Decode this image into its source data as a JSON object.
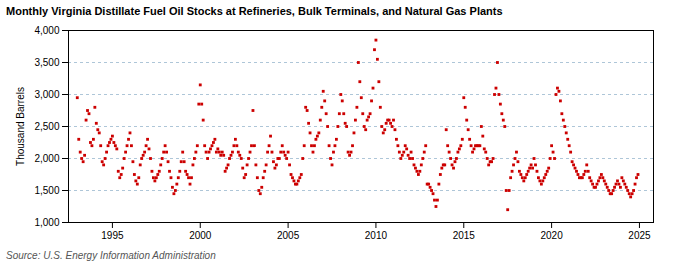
{
  "chart_data": {
    "type": "scatter",
    "title": "Monthly Virginia Distillate Fuel Oil Stocks at Refineries, Bulk Terminals, and Natural Gas Plants",
    "ylabel": "Thousand Barrels",
    "source": "Source: U.S. Energy Information Administration",
    "color": "#cc0000",
    "marker": "square",
    "grid": "y",
    "xlim": [
      1992.5,
      2025.8
    ],
    "xticks": [
      1995,
      2000,
      2005,
      2010,
      2015,
      2020,
      2025
    ],
    "ylim": [
      1000,
      4000
    ],
    "yticks": [
      {
        "value": 1000,
        "label": "1,000"
      },
      {
        "value": 1500,
        "label": "1,500"
      },
      {
        "value": 2000,
        "label": "2,000"
      },
      {
        "value": 2500,
        "label": "2,500"
      },
      {
        "value": 3000,
        "label": "3,000"
      },
      {
        "value": 3500,
        "label": "3,500"
      },
      {
        "value": 4000,
        "label": "4,000"
      }
    ],
    "x": [
      1993.0,
      1993.083,
      1993.167,
      1993.25,
      1993.333,
      1993.417,
      1993.5,
      1993.583,
      1993.667,
      1993.75,
      1993.833,
      1993.917,
      1994.0,
      1994.083,
      1994.167,
      1994.25,
      1994.333,
      1994.417,
      1994.5,
      1994.583,
      1994.667,
      1994.75,
      1994.833,
      1994.917,
      1995.0,
      1995.083,
      1995.167,
      1995.25,
      1995.333,
      1995.417,
      1995.5,
      1995.583,
      1995.667,
      1995.75,
      1995.833,
      1995.917,
      1996.0,
      1996.083,
      1996.167,
      1996.25,
      1996.333,
      1996.417,
      1996.5,
      1996.583,
      1996.667,
      1996.75,
      1996.833,
      1996.917,
      1997.0,
      1997.083,
      1997.167,
      1997.25,
      1997.333,
      1997.417,
      1997.5,
      1997.583,
      1997.667,
      1997.75,
      1997.833,
      1997.917,
      1998.0,
      1998.083,
      1998.167,
      1998.25,
      1998.333,
      1998.417,
      1998.5,
      1998.583,
      1998.667,
      1998.75,
      1998.833,
      1998.917,
      1999.0,
      1999.083,
      1999.167,
      1999.25,
      1999.333,
      1999.417,
      1999.5,
      1999.583,
      1999.667,
      1999.75,
      1999.833,
      1999.917,
      2000.0,
      2000.083,
      2000.167,
      2000.25,
      2000.333,
      2000.417,
      2000.5,
      2000.583,
      2000.667,
      2000.75,
      2000.833,
      2000.917,
      2001.0,
      2001.083,
      2001.167,
      2001.25,
      2001.333,
      2001.417,
      2001.5,
      2001.583,
      2001.667,
      2001.75,
      2001.833,
      2001.917,
      2002.0,
      2002.083,
      2002.167,
      2002.25,
      2002.333,
      2002.417,
      2002.5,
      2002.583,
      2002.667,
      2002.75,
      2002.833,
      2002.917,
      2003.0,
      2003.083,
      2003.167,
      2003.25,
      2003.333,
      2003.417,
      2003.5,
      2003.583,
      2003.667,
      2003.75,
      2003.833,
      2003.917,
      2004.0,
      2004.083,
      2004.167,
      2004.25,
      2004.333,
      2004.417,
      2004.5,
      2004.583,
      2004.667,
      2004.75,
      2004.833,
      2004.917,
      2005.0,
      2005.083,
      2005.167,
      2005.25,
      2005.333,
      2005.417,
      2005.5,
      2005.583,
      2005.667,
      2005.75,
      2005.833,
      2005.917,
      2006.0,
      2006.083,
      2006.167,
      2006.25,
      2006.333,
      2006.417,
      2006.5,
      2006.583,
      2006.667,
      2006.75,
      2006.833,
      2006.917,
      2007.0,
      2007.083,
      2007.167,
      2007.25,
      2007.333,
      2007.417,
      2007.5,
      2007.583,
      2007.667,
      2007.75,
      2007.833,
      2007.917,
      2008.0,
      2008.083,
      2008.167,
      2008.25,
      2008.333,
      2008.417,
      2008.5,
      2008.583,
      2008.667,
      2008.75,
      2008.833,
      2008.917,
      2009.0,
      2009.083,
      2009.167,
      2009.25,
      2009.333,
      2009.417,
      2009.5,
      2009.583,
      2009.667,
      2009.75,
      2009.833,
      2009.917,
      2010.0,
      2010.083,
      2010.167,
      2010.25,
      2010.333,
      2010.417,
      2010.5,
      2010.583,
      2010.667,
      2010.75,
      2010.833,
      2010.917,
      2011.0,
      2011.083,
      2011.167,
      2011.25,
      2011.333,
      2011.417,
      2011.5,
      2011.583,
      2011.667,
      2011.75,
      2011.833,
      2011.917,
      2012.0,
      2012.083,
      2012.167,
      2012.25,
      2012.333,
      2012.417,
      2012.5,
      2012.583,
      2012.667,
      2012.75,
      2012.833,
      2012.917,
      2013.0,
      2013.083,
      2013.167,
      2013.25,
      2013.333,
      2013.417,
      2013.5,
      2013.583,
      2013.667,
      2013.75,
      2013.833,
      2013.917,
      2014.0,
      2014.083,
      2014.167,
      2014.25,
      2014.333,
      2014.417,
      2014.5,
      2014.583,
      2014.667,
      2014.75,
      2014.833,
      2014.917,
      2015.0,
      2015.083,
      2015.167,
      2015.25,
      2015.333,
      2015.417,
      2015.5,
      2015.583,
      2015.667,
      2015.75,
      2015.833,
      2015.917,
      2016.0,
      2016.083,
      2016.167,
      2016.25,
      2016.333,
      2016.417,
      2016.5,
      2016.583,
      2016.667,
      2016.75,
      2016.833,
      2016.917,
      2017.0,
      2017.083,
      2017.167,
      2017.25,
      2017.333,
      2017.417,
      2017.5,
      2017.583,
      2017.667,
      2017.75,
      2017.833,
      2017.917,
      2018.0,
      2018.083,
      2018.167,
      2018.25,
      2018.333,
      2018.417,
      2018.5,
      2018.583,
      2018.667,
      2018.75,
      2018.833,
      2018.917,
      2019.0,
      2019.083,
      2019.167,
      2019.25,
      2019.333,
      2019.417,
      2019.5,
      2019.583,
      2019.667,
      2019.75,
      2019.833,
      2019.917,
      2020.0,
      2020.083,
      2020.167,
      2020.25,
      2020.333,
      2020.417,
      2020.5,
      2020.583,
      2020.667,
      2020.75,
      2020.833,
      2020.917,
      2021.0,
      2021.083,
      2021.167,
      2021.25,
      2021.333,
      2021.417,
      2021.5,
      2021.583,
      2021.667,
      2021.75,
      2021.833,
      2021.917,
      2022.0,
      2022.083,
      2022.167,
      2022.25,
      2022.333,
      2022.417,
      2022.5,
      2022.583,
      2022.667,
      2022.75,
      2022.833,
      2022.917,
      2023.0,
      2023.083,
      2023.167,
      2023.25,
      2023.333,
      2023.417,
      2023.5,
      2023.583,
      2023.667,
      2023.75,
      2023.833,
      2023.917,
      2024.0,
      2024.083,
      2024.167,
      2024.25,
      2024.333,
      2024.417,
      2024.5,
      2024.583,
      2024.667,
      2024.75,
      2024.833,
      2024.917
    ],
    "values": [
      2950,
      2300,
      2100,
      2000,
      1950,
      2050,
      2600,
      2750,
      2700,
      2250,
      2200,
      2300,
      2800,
      2550,
      2450,
      2400,
      2200,
      1950,
      1900,
      2000,
      2100,
      2200,
      2250,
      2300,
      2350,
      2250,
      2200,
      2150,
      1800,
      1700,
      1750,
      1850,
      2000,
      2100,
      2200,
      2300,
      2400,
      2200,
      1950,
      1750,
      1650,
      1600,
      1700,
      1900,
      2000,
      2050,
      2100,
      2200,
      2300,
      2150,
      2000,
      1800,
      1700,
      1650,
      1700,
      1750,
      1800,
      1900,
      2000,
      2100,
      2200,
      2100,
      1950,
      1800,
      1700,
      1550,
      1450,
      1500,
      1600,
      1700,
      1800,
      1950,
      2100,
      1950,
      1800,
      1750,
      1700,
      1600,
      1700,
      1900,
      2000,
      2100,
      2200,
      2850,
      3150,
      2850,
      2600,
      2200,
      2100,
      2000,
      2100,
      2150,
      2200,
      2250,
      2300,
      2100,
      2150,
      2100,
      2050,
      2100,
      2050,
      1800,
      1850,
      1900,
      2000,
      2050,
      2100,
      2200,
      2300,
      2200,
      2100,
      2050,
      2000,
      1850,
      1700,
      1750,
      1900,
      2000,
      2100,
      2200,
      2750,
      2200,
      1900,
      1700,
      1500,
      1450,
      1550,
      1700,
      1800,
      1900,
      2100,
      2200,
      2350,
      2100,
      1950,
      1850,
      1900,
      2000,
      2000,
      2100,
      2200,
      2100,
      2050,
      2000,
      2100,
      1900,
      1750,
      1700,
      1650,
      1600,
      1600,
      1650,
      1700,
      1750,
      2000,
      2200,
      2800,
      2750,
      2550,
      2400,
      2200,
      2100,
      2200,
      2300,
      2350,
      2400,
      2600,
      2800,
      3050,
      2900,
      2700,
      2500,
      2200,
      2000,
      1900,
      2100,
      2200,
      2300,
      2500,
      2700,
      3000,
      2900,
      2700,
      2550,
      2500,
      2100,
      2050,
      2100,
      2200,
      2400,
      2600,
      2800,
      3500,
      3200,
      2950,
      2700,
      2500,
      2450,
      2600,
      2650,
      2700,
      2900,
      3100,
      3700,
      3850,
      3550,
      3200,
      2800,
      2500,
      2400,
      2450,
      2550,
      2600,
      2600,
      2550,
      2500,
      2600,
      2450,
      2300,
      2200,
      2100,
      2000,
      2050,
      2100,
      2200,
      2150,
      2050,
      2000,
      2100,
      2000,
      1900,
      1850,
      1800,
      1750,
      1800,
      1900,
      2000,
      2100,
      2200,
      1600,
      1600,
      1550,
      1500,
      1450,
      1350,
      1250,
      1350,
      1600,
      1750,
      1850,
      1900,
      1900,
      2450,
      2200,
      2100,
      2000,
      1900,
      1850,
      1950,
      2000,
      2100,
      2150,
      2200,
      2300,
      2950,
      2800,
      2600,
      2450,
      2300,
      2200,
      2100,
      2150,
      2200,
      2200,
      2200,
      2200,
      2500,
      2350,
      2150,
      2100,
      2000,
      1900,
      1950,
      1950,
      2000,
      3000,
      3100,
      3500,
      3000,
      2850,
      2700,
      2600,
      2500,
      1500,
      1200,
      1500,
      1700,
      1800,
      1900,
      2000,
      2100,
      1950,
      1800,
      1750,
      1700,
      1650,
      1700,
      1750,
      1800,
      1850,
      1900,
      1850,
      2000,
      1900,
      1800,
      1700,
      1650,
      1600,
      1650,
      1700,
      1750,
      1800,
      1850,
      2000,
      2200,
      2100,
      2000,
      3000,
      3100,
      3050,
      2900,
      2700,
      2600,
      2500,
      2400,
      2300,
      2200,
      2100,
      1950,
      1900,
      1850,
      1800,
      1750,
      1700,
      1700,
      1700,
      1750,
      1800,
      1900,
      1800,
      1700,
      1650,
      1600,
      1550,
      1550,
      1600,
      1650,
      1700,
      1750,
      1700,
      1650,
      1600,
      1550,
      1500,
      1450,
      1450,
      1500,
      1550,
      1600,
      1650,
      1600,
      1550,
      1700,
      1650,
      1600,
      1550,
      1500,
      1450,
      1400,
      1450,
      1500,
      1600,
      1700,
      1750
    ]
  }
}
